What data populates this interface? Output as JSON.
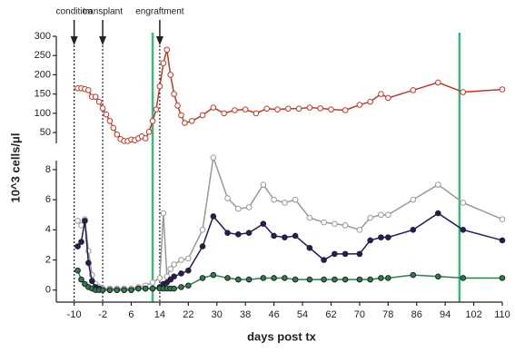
{
  "chart_data": [
    {
      "type": "line",
      "ylabel": "10^3 cells/μl",
      "xlim": [
        -15,
        110
      ],
      "ylim": [
        22,
        300
      ],
      "yticks": [
        50,
        100,
        150,
        200,
        250,
        300
      ],
      "annotations": [
        {
          "text": "condition",
          "x": -10
        },
        {
          "text": "transplant",
          "x": -2
        },
        {
          "text": "engraftment",
          "x": 14
        }
      ],
      "vlines": [
        {
          "x": 12,
          "color": "#3cb878"
        },
        {
          "x": 98,
          "color": "#3cb878"
        }
      ],
      "x": [
        -9,
        -8,
        -7,
        -6,
        -5,
        -4,
        -3,
        -2,
        -1,
        0,
        1,
        2,
        3,
        4,
        5,
        6,
        7,
        8,
        9,
        10,
        11,
        12,
        13,
        14,
        15,
        16,
        17,
        18,
        19,
        20,
        21,
        23,
        26,
        29,
        32,
        35,
        38,
        41,
        44,
        47,
        50,
        53,
        56,
        59,
        62,
        66,
        70,
        73,
        76,
        78,
        85,
        92,
        99,
        110
      ],
      "series": [
        {
          "color": "#c0392b",
          "marker": "open",
          "values": [
            165,
            165,
            163,
            160,
            143,
            143,
            130,
            113,
            97,
            80,
            62,
            45,
            33,
            28,
            28,
            32,
            30,
            35,
            40,
            35,
            52,
            80,
            110,
            170,
            230,
            265,
            200,
            150,
            120,
            95,
            75,
            80,
            95,
            115,
            100,
            108,
            110,
            100,
            112,
            110,
            112,
            112,
            115,
            113,
            110,
            108,
            122,
            130,
            150,
            140,
            160,
            180,
            155,
            162
          ]
        }
      ]
    },
    {
      "type": "line",
      "xlabel": "days post tx",
      "xlim": [
        -15,
        110
      ],
      "xticks": [
        -10,
        -2,
        6,
        14,
        22,
        30,
        38,
        46,
        54,
        62,
        70,
        78,
        86,
        94,
        102,
        110
      ],
      "ylim": [
        -0.8,
        8.6
      ],
      "yticks": [
        0,
        2,
        4,
        6,
        8
      ],
      "x": [
        -9,
        -8,
        -7,
        -6,
        -5,
        -4,
        -3,
        -2,
        0,
        2,
        4,
        6,
        8,
        10,
        12,
        14,
        15,
        16,
        17,
        18,
        20,
        22,
        26,
        29,
        33,
        36,
        39,
        43,
        46,
        49,
        52,
        56,
        60,
        63,
        66,
        70,
        73,
        76,
        78,
        85,
        92,
        99,
        110
      ],
      "series": [
        {
          "color": "#999999",
          "marker": "open",
          "values": [
            4.6,
            4.3,
            4.7,
            2.6,
            1.0,
            0.4,
            0.2,
            0.1,
            0.1,
            0.1,
            0.1,
            0.1,
            0.2,
            0.3,
            0.5,
            0.8,
            5.1,
            0.9,
            1.4,
            1.7,
            2.0,
            2.1,
            4.0,
            8.8,
            6.1,
            5.4,
            5.5,
            7.0,
            6.0,
            5.8,
            6.0,
            4.8,
            4.5,
            4.4,
            4.3,
            4.0,
            4.8,
            5.0,
            5.0,
            6.0,
            7.0,
            5.8,
            4.7
          ]
        },
        {
          "color": "#1f1f5c",
          "marker": "filled",
          "values": [
            2.9,
            3.2,
            4.6,
            1.8,
            0.6,
            0.2,
            0.1,
            0,
            0,
            0,
            0,
            0,
            0.1,
            0.1,
            0.1,
            0.2,
            0.4,
            0.5,
            0.7,
            0.9,
            1.1,
            1.3,
            2.9,
            4.9,
            3.8,
            3.7,
            3.8,
            4.4,
            3.6,
            3.5,
            3.6,
            2.8,
            2.0,
            2.4,
            2.4,
            2.4,
            3.3,
            3.5,
            3.5,
            4.0,
            5.1,
            4.0,
            3.3
          ]
        },
        {
          "color": "#2e7d4f",
          "marker": "filled",
          "values": [
            1.3,
            0.7,
            0.4,
            0.2,
            0.1,
            0,
            0,
            0,
            0,
            0,
            0,
            0,
            0.1,
            0.1,
            0.1,
            0.1,
            0.1,
            0.1,
            0.1,
            0.1,
            0.2,
            0.3,
            0.8,
            1.0,
            0.8,
            0.7,
            0.7,
            0.8,
            0.8,
            0.8,
            0.7,
            0.7,
            0.7,
            0.7,
            0.7,
            0.7,
            0.7,
            0.8,
            0.8,
            1.0,
            0.9,
            0.8,
            0.8
          ]
        }
      ]
    }
  ]
}
